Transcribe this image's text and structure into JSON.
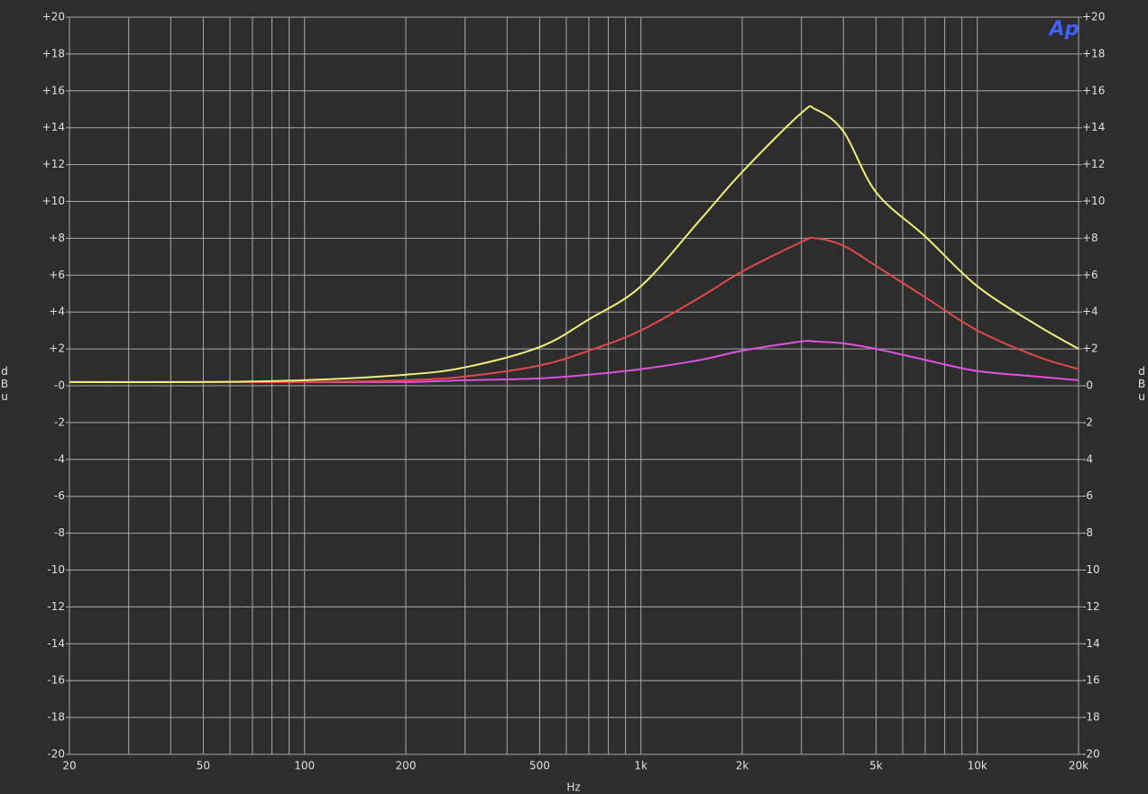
{
  "chart_data": {
    "type": "line",
    "logo": "Ap",
    "xlabel": "Hz",
    "ylabel": "dBu",
    "xscale": "log",
    "grid": true,
    "xlim": [
      20,
      20000
    ],
    "ylim": [
      -20,
      20
    ],
    "xticks": [
      20,
      50,
      100,
      200,
      500,
      {
        "value": 1000,
        "label": "1k"
      },
      {
        "value": 2000,
        "label": "2k"
      },
      {
        "value": 5000,
        "label": "5k"
      },
      {
        "value": 10000,
        "label": "10k"
      },
      {
        "value": 20000,
        "label": "20k"
      }
    ],
    "minor_xticks": [
      30,
      40,
      60,
      70,
      80,
      90,
      300,
      400,
      600,
      700,
      800,
      900,
      3000,
      4000,
      6000,
      7000,
      8000,
      9000
    ],
    "yticks": [
      {
        "value": 20,
        "label": "+20"
      },
      {
        "value": 18,
        "label": "+18"
      },
      {
        "value": 16,
        "label": "+16"
      },
      {
        "value": 14,
        "label": "+14"
      },
      {
        "value": 12,
        "label": "+12"
      },
      {
        "value": 10,
        "label": "+10"
      },
      {
        "value": 8,
        "label": "+8"
      },
      {
        "value": 6,
        "label": "+6"
      },
      {
        "value": 4,
        "label": "+4"
      },
      {
        "value": 2,
        "label": "+2"
      },
      {
        "value": 0,
        "label": "-0"
      },
      -2,
      -4,
      -6,
      -8,
      -10,
      -12,
      -14,
      -16,
      -18,
      -20
    ],
    "x": [
      20,
      50,
      100,
      200,
      300,
      500,
      700,
      1000,
      1500,
      2000,
      3000,
      3300,
      4000,
      5000,
      7000,
      10000,
      15000,
      20000
    ],
    "series": [
      {
        "color": "#eeee78",
        "values": [
          0.2,
          0.2,
          0.3,
          0.6,
          1.0,
          2.1,
          3.6,
          5.4,
          9.0,
          11.6,
          14.8,
          15.0,
          13.8,
          10.5,
          8.1,
          5.4,
          3.3,
          2.0
        ]
      },
      {
        "color": "#e04848",
        "values": [
          0.2,
          0.2,
          0.2,
          0.3,
          0.5,
          1.1,
          1.9,
          3.0,
          4.8,
          6.2,
          7.8,
          8.0,
          7.6,
          6.5,
          4.8,
          3.0,
          1.6,
          0.9
        ]
      },
      {
        "color": "#e050e0",
        "values": [
          0.2,
          0.2,
          0.2,
          0.2,
          0.3,
          0.4,
          0.6,
          0.9,
          1.4,
          1.9,
          2.4,
          2.4,
          2.3,
          2.0,
          1.4,
          0.8,
          0.5,
          0.3
        ]
      }
    ]
  }
}
